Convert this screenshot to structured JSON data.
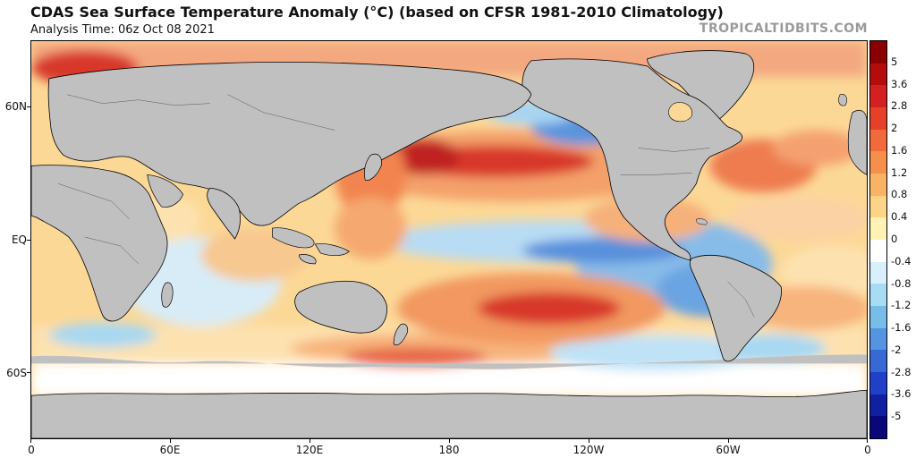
{
  "header": {
    "title": "CDAS Sea Surface Temperature Anomaly (°C) (based on CFSR 1981-2010 Climatology)",
    "analysis_time": "Analysis Time: 06z Oct 08 2021",
    "brand": "TROPICALTIDBITS.COM"
  },
  "map": {
    "lat_labels": [
      "60N",
      "EQ",
      "60S"
    ],
    "lon_labels": [
      "0",
      "60E",
      "120E",
      "180",
      "120W",
      "60W",
      "0"
    ],
    "land_color": "#c0c0c0",
    "coast_color": "#000000"
  },
  "colorbar": {
    "labels": [
      "5",
      "3.6",
      "2.8",
      "2",
      "1.6",
      "1.2",
      "0.8",
      "0.4",
      "0",
      "-0.4",
      "-0.8",
      "-1.2",
      "-1.6",
      "-2",
      "-2.8",
      "-3.6",
      "-5"
    ],
    "colors": [
      "#8b0000",
      "#b40c0c",
      "#d42020",
      "#e64028",
      "#f06a3c",
      "#f4904c",
      "#f8b464",
      "#fcd488",
      "#fff2b4",
      "#ffffff",
      "#d8f0fc",
      "#a8dcf4",
      "#78bce8",
      "#5494e0",
      "#3868d4",
      "#2040c8",
      "#1020a0",
      "#08087a"
    ]
  }
}
